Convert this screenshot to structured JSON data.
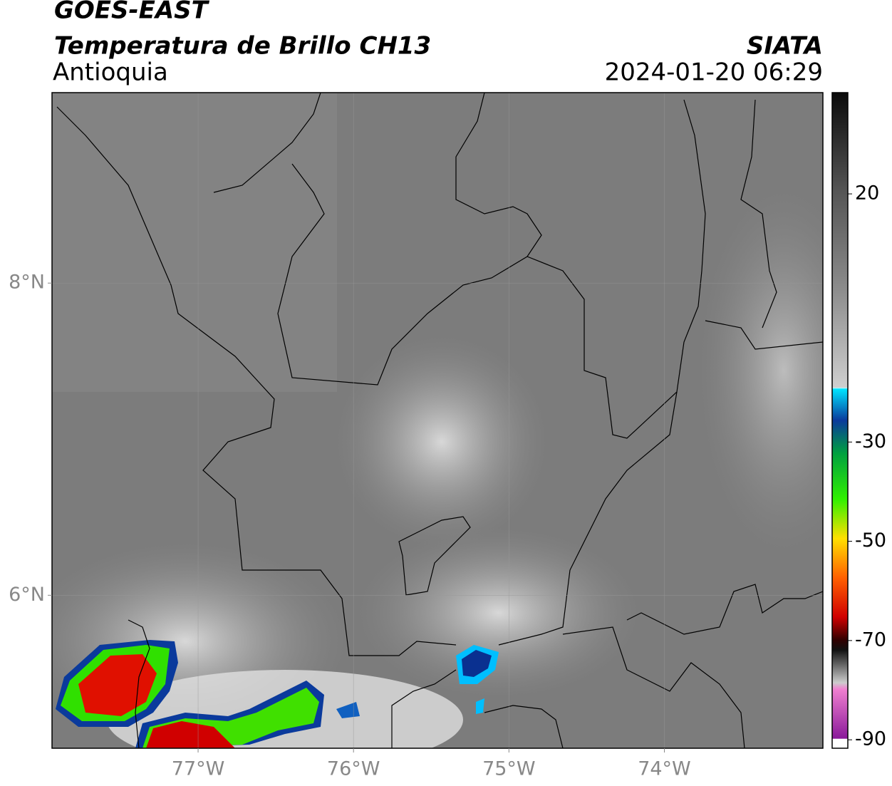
{
  "header": {
    "satellite": "GOES-EAST",
    "product": "Temperatura de Brillo CH13",
    "region": "Antioquia",
    "source": "SIATA",
    "datetime": "2024-01-20 06:29"
  },
  "map": {
    "xlim": [
      -77.94,
      -72.98
    ],
    "ylim": [
      5.02,
      9.22
    ],
    "xticks": [
      {
        "value": -77,
        "label": "77°W"
      },
      {
        "value": -76,
        "label": "76°W"
      },
      {
        "value": -75,
        "label": "75°W"
      },
      {
        "value": -74,
        "label": "74°W"
      }
    ],
    "yticks": [
      {
        "value": 8,
        "label": "8°N"
      },
      {
        "value": 6,
        "label": "6°N"
      }
    ]
  },
  "colorbar": {
    "lim": [
      -91.7,
      40.4
    ],
    "ticks": [
      20,
      -30,
      -50,
      -70,
      -90
    ]
  }
}
